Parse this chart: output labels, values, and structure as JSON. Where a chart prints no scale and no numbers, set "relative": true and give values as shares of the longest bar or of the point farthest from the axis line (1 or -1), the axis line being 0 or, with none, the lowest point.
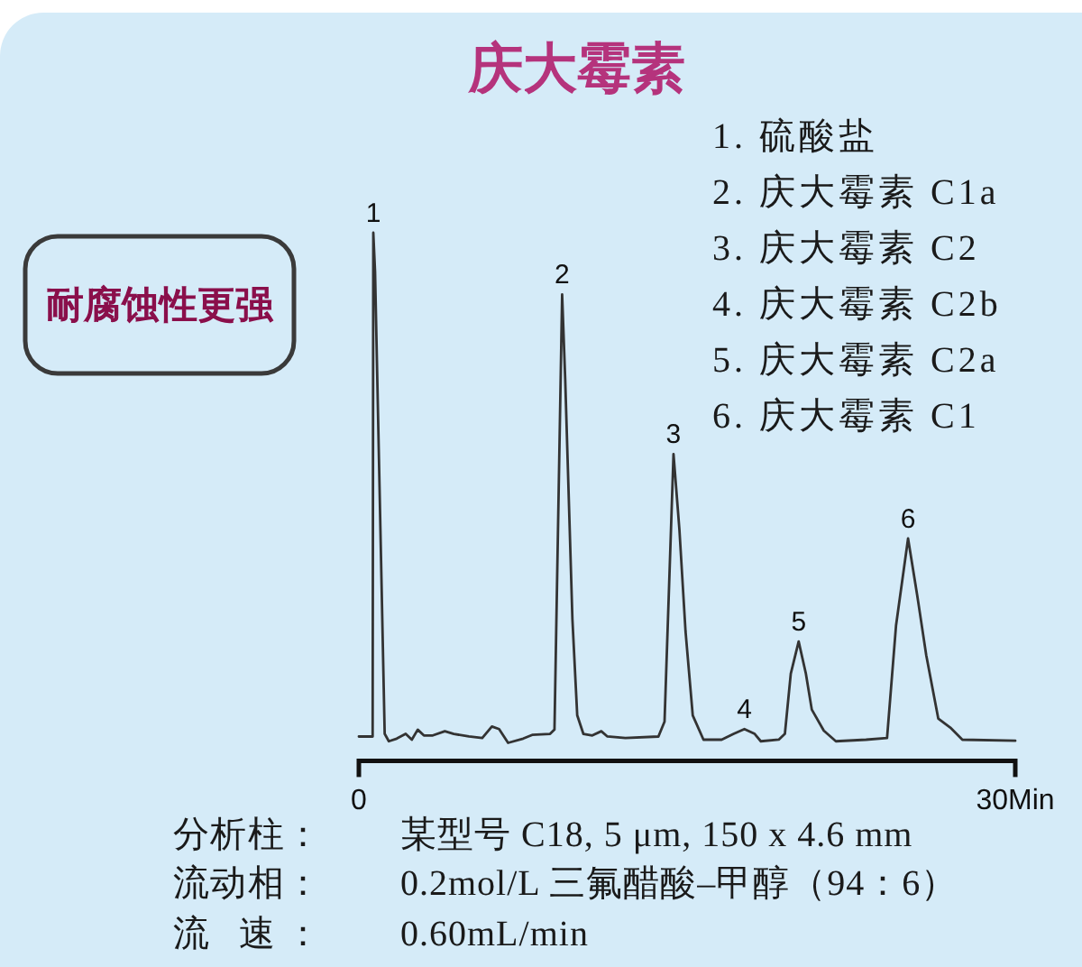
{
  "chart_data": {
    "type": "line",
    "title": "庆大霉素",
    "relative": true,
    "x": [
      0,
      0.63,
      0.66,
      0.74,
      1.18,
      1.37,
      1.73,
      2.14,
      2.42,
      2.69,
      2.97,
      3.38,
      3.93,
      4.34,
      5.03,
      5.64,
      6.08,
      6.41,
      6.82,
      7.51,
      7.92,
      8.74,
      8.94,
      9.29,
      9.43,
      9.76,
      9.98,
      10.26,
      10.67,
      11.08,
      11.36,
      12.18,
      13.69,
      13.97,
      14.38,
      14.65,
      14.93,
      15.26,
      15.75,
      16.58,
      17.13,
      17.62,
      18.09,
      18.37,
      19.19,
      19.47,
      19.74,
      20.1,
      20.43,
      20.7,
      21.25,
      21.8,
      23.18,
      24.14,
      24.55,
      25.1,
      25.52,
      25.93,
      26.48,
      27.03,
      27.58,
      30
    ],
    "series": [
      {
        "color": "#333333",
        "values": [
          0.046,
          0.046,
          1.0,
          0.926,
          0.051,
          0.037,
          0.042,
          0.051,
          0.04,
          0.059,
          0.048,
          0.048,
          0.056,
          0.051,
          0.046,
          0.043,
          0.065,
          0.06,
          0.034,
          0.042,
          0.049,
          0.051,
          0.059,
          0.883,
          0.723,
          0.268,
          0.086,
          0.051,
          0.048,
          0.056,
          0.046,
          0.043,
          0.046,
          0.074,
          0.581,
          0.438,
          0.245,
          0.086,
          0.04,
          0.04,
          0.051,
          0.06,
          0.051,
          0.037,
          0.04,
          0.051,
          0.165,
          0.226,
          0.165,
          0.097,
          0.057,
          0.037,
          0.04,
          0.043,
          0.256,
          0.421,
          0.313,
          0.2,
          0.08,
          0.063,
          0.04,
          0.038
        ]
      }
    ],
    "xlim": [
      0,
      30
    ],
    "xticks": [
      0,
      {
        "value": 30,
        "label": "30Min"
      }
    ],
    "annotations": [
      {
        "text": "1",
        "x": 0.66,
        "y": 1.0
      },
      {
        "text": "2",
        "x": 9.29,
        "y": 0.883
      },
      {
        "text": "3",
        "x": 14.38,
        "y": 0.581
      },
      {
        "text": "4",
        "x": 17.62,
        "y": 0.06
      },
      {
        "text": "5",
        "x": 20.1,
        "y": 0.226
      },
      {
        "text": "6",
        "x": 25.1,
        "y": 0.421
      },
      "1. 硫酸盐",
      "2. 庆大霉素 C1a",
      "3. 庆大霉素 C2",
      "4. 庆大霉素 C2b",
      "5. 庆大霉素 C2a",
      "6. 庆大霉素 C1",
      "耐腐蚀性更强",
      "分析柱：",
      "某型号 C18, 5 μm, 150 x 4.6 mm",
      "流动相：",
      "0.2mol/L 三氟醋酸–甲醇（94：6）",
      "流 速：",
      "0.60mL/min"
    ]
  }
}
